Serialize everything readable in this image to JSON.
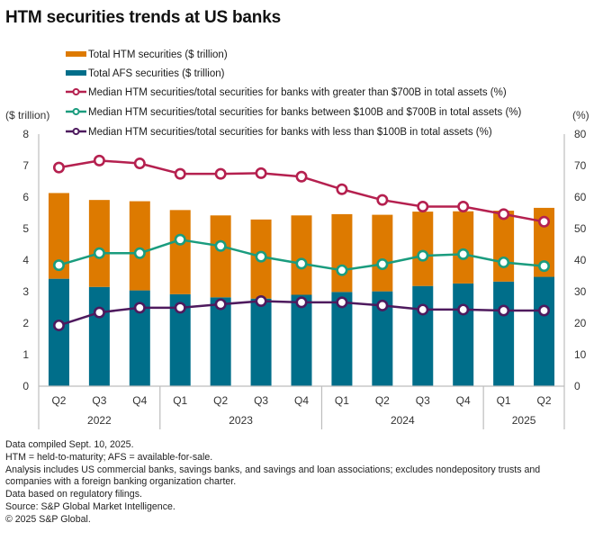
{
  "title": "HTM securities trends at US banks",
  "chart_data": {
    "type": "bar+line",
    "title": "HTM securities trends at US banks",
    "categories": [
      "Q2",
      "Q3",
      "Q4",
      "Q1",
      "Q2",
      "Q3",
      "Q4",
      "Q1",
      "Q2",
      "Q3",
      "Q4",
      "Q1",
      "Q2"
    ],
    "year_groups": [
      {
        "label": "2022",
        "span": 3
      },
      {
        "label": "2023",
        "span": 4
      },
      {
        "label": "2024",
        "span": 4
      },
      {
        "label": "2025",
        "span": 2
      }
    ],
    "left_axis": {
      "label": "($ trillion)",
      "ylim": [
        0,
        8
      ],
      "ticks": [
        0,
        1,
        2,
        3,
        4,
        5,
        6,
        7,
        8
      ]
    },
    "right_axis": {
      "label": "(%)",
      "ylim": [
        0,
        80
      ],
      "ticks": [
        0,
        10,
        20,
        30,
        40,
        50,
        60,
        70,
        80
      ]
    },
    "stacked_bars": [
      {
        "name": "Total AFS securities ($ trillion)",
        "color": "#006e8a",
        "axis": "left",
        "values": [
          3.41,
          3.15,
          3.04,
          2.92,
          2.82,
          2.78,
          2.9,
          2.99,
          3.01,
          3.18,
          3.26,
          3.32,
          3.47
        ]
      },
      {
        "name": "Total HTM securities ($ trillion)",
        "color": "#dd7a00",
        "axis": "left",
        "values": [
          2.72,
          2.76,
          2.83,
          2.67,
          2.6,
          2.51,
          2.52,
          2.47,
          2.43,
          2.36,
          2.29,
          2.25,
          2.19
        ]
      }
    ],
    "lines": [
      {
        "name": "Median HTM securities/total securities for banks with greater than $700B in total assets (%)",
        "color": "#b5204f",
        "axis": "right",
        "values": [
          69.4,
          71.6,
          70.7,
          67.4,
          67.4,
          67.6,
          66.5,
          62.5,
          59.1,
          57.0,
          57.0,
          54.6,
          52.2
        ]
      },
      {
        "name": "Median HTM securities/total securities for banks between $100B and $700B in total assets (%)",
        "color": "#1a9c7e",
        "axis": "right",
        "values": [
          38.4,
          42.2,
          42.2,
          46.5,
          44.5,
          41.1,
          38.9,
          36.8,
          38.7,
          41.4,
          41.9,
          39.3,
          38.1
        ]
      },
      {
        "name": "Median HTM securities/total securities for banks with less than $100B in total assets (%)",
        "color": "#4e1a5e",
        "axis": "right",
        "values": [
          19.3,
          23.4,
          24.9,
          24.9,
          26.0,
          27.0,
          26.6,
          26.6,
          25.6,
          24.3,
          24.3,
          24.0,
          24.0
        ]
      }
    ],
    "legend": {
      "placement": "top",
      "entries": [
        {
          "label": "Total HTM securities ($ trillion)",
          "kind": "bar",
          "color": "#dd7a00"
        },
        {
          "label": "Total AFS securities ($ trillion)",
          "kind": "bar",
          "color": "#006e8a"
        },
        {
          "label": "Median HTM securities/total securities for banks with greater than $700B in total assets (%)",
          "kind": "line",
          "color": "#b5204f"
        },
        {
          "label": "Median HTM securities/total securities for banks between $100B and $700B in total assets (%)",
          "kind": "line",
          "color": "#1a9c7e"
        },
        {
          "label": "Median HTM securities/total securities for banks with less than $100B in total assets (%)",
          "kind": "line",
          "color": "#4e1a5e"
        }
      ]
    },
    "grid": false
  },
  "footer": [
    "Data compiled Sept. 10, 2025.",
    "HTM = held-to-maturity; AFS = available-for-sale.",
    "Analysis includes US commercial banks, savings banks, and savings and loan associations; excludes nondepository trusts and companies with a foreign banking organization charter.",
    "Data based on regulatory filings.",
    "Source: S&P Global Market Intelligence.",
    "© 2025 S&P Global."
  ]
}
